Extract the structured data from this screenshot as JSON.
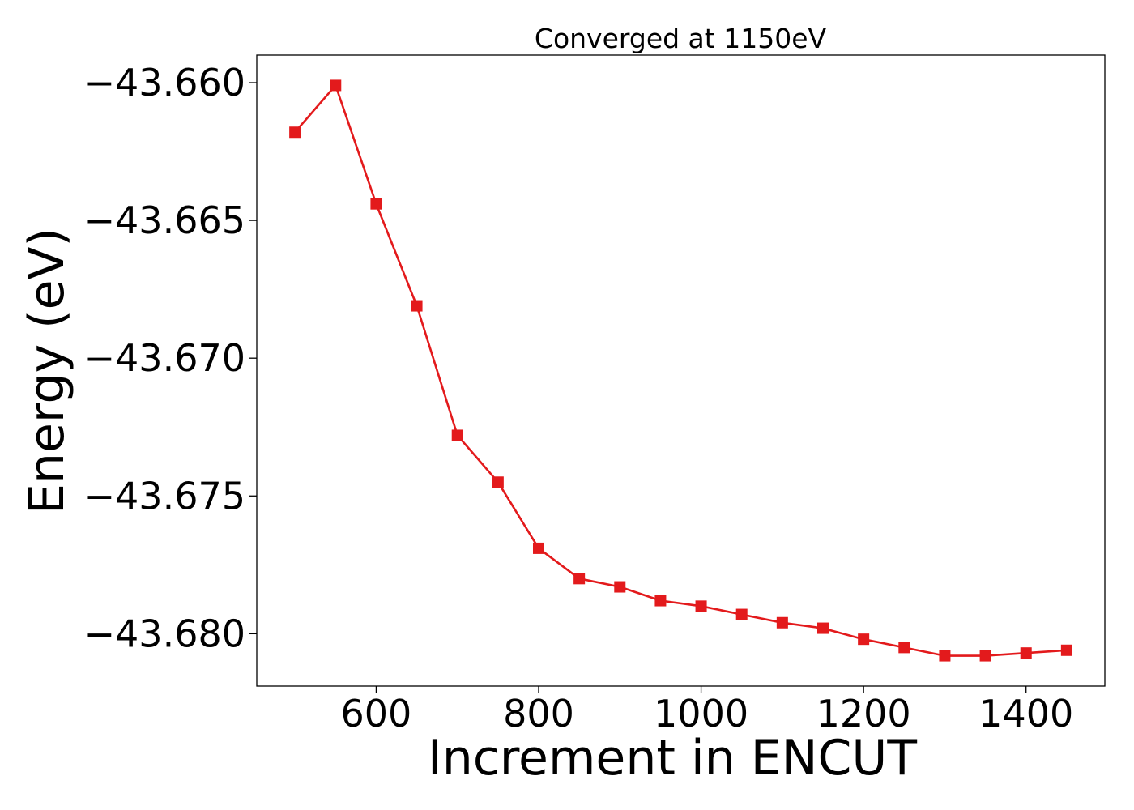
{
  "chart_data": {
    "type": "line",
    "title": "Converged at 1150eV",
    "xlabel": "Increment in ENCUT",
    "ylabel": "Energy (eV)",
    "xlim": [
      453,
      1497
    ],
    "ylim": [
      -43.6819,
      -43.659
    ],
    "x_ticks": [
      600,
      800,
      1000,
      1200,
      1400
    ],
    "x_tick_labels": [
      "600",
      "800",
      "1000",
      "1200",
      "1400"
    ],
    "y_ticks": [
      -43.66,
      -43.665,
      -43.67,
      -43.675,
      -43.68
    ],
    "y_tick_labels": [
      "−43.660",
      "−43.665",
      "−43.670",
      "−43.675",
      "−43.680"
    ],
    "grid": false,
    "series": [
      {
        "color": "#e31a1c",
        "marker": "square",
        "x": [
          500,
          550,
          600,
          650,
          700,
          750,
          800,
          850,
          900,
          950,
          1000,
          1050,
          1100,
          1150,
          1200,
          1250,
          1300,
          1350,
          1400,
          1450
        ],
        "y": [
          -43.6618,
          -43.6601,
          -43.6644,
          -43.6681,
          -43.6728,
          -43.6745,
          -43.6769,
          -43.678,
          -43.6783,
          -43.6788,
          -43.679,
          -43.6793,
          -43.6796,
          -43.6798,
          -43.6802,
          -43.6805,
          -43.6808,
          -43.6808,
          -43.6807,
          -43.6806
        ]
      }
    ]
  }
}
